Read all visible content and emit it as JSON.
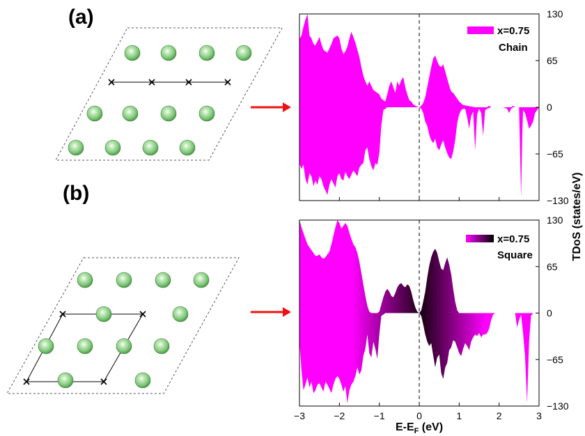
{
  "figure": {
    "panel_labels": [
      "(a)",
      "(b)"
    ],
    "colors": {
      "magenta": "#ff00ff",
      "dark": "#1a0014",
      "atom": "#7fc67a",
      "arrow": "#ee1111"
    }
  },
  "chart_data": [
    {
      "type": "area",
      "panel": "(a)",
      "legend": [
        "x=0.75",
        "Chain"
      ],
      "xlim": [
        -3,
        3
      ],
      "ylim": [
        -130,
        130
      ],
      "xticks": [
        -3,
        -2,
        -1,
        0,
        1,
        2,
        3
      ],
      "yticks": [
        -130,
        -65,
        0,
        65,
        130
      ],
      "fermi_line": 0,
      "fill": "solid",
      "spin_up": {
        "x": [
          -3.0,
          -2.95,
          -2.9,
          -2.85,
          -2.8,
          -2.75,
          -2.7,
          -2.65,
          -2.6,
          -2.55,
          -2.5,
          -2.45,
          -2.4,
          -2.35,
          -2.3,
          -2.25,
          -2.2,
          -2.15,
          -2.1,
          -2.05,
          -2.0,
          -1.95,
          -1.9,
          -1.85,
          -1.8,
          -1.75,
          -1.7,
          -1.65,
          -1.6,
          -1.55,
          -1.5,
          -1.45,
          -1.4,
          -1.35,
          -1.3,
          -1.25,
          -1.2,
          -1.15,
          -1.1,
          -1.05,
          -1.0,
          -0.95,
          -0.9,
          -0.85,
          -0.8,
          -0.75,
          -0.7,
          -0.65,
          -0.6,
          -0.55,
          -0.5,
          -0.45,
          -0.4,
          -0.35,
          -0.3,
          -0.25,
          -0.2,
          -0.15,
          -0.1,
          -0.05,
          0.0,
          0.05,
          0.1,
          0.15,
          0.2,
          0.25,
          0.3,
          0.35,
          0.4,
          0.45,
          0.5,
          0.55,
          0.6,
          0.65,
          0.7,
          0.75,
          0.8,
          0.85,
          0.9,
          0.95,
          1.0,
          1.1,
          1.2,
          1.3,
          1.4,
          1.5,
          1.6,
          1.7,
          1.75,
          1.8,
          1.9,
          2.0,
          2.1,
          2.2,
          2.3,
          2.35,
          2.4,
          2.45,
          2.5,
          2.55,
          2.6,
          2.65,
          2.7,
          2.8,
          2.9,
          3.0
        ],
        "y": [
          95,
          100,
          112,
          122,
          130,
          100,
          96,
          88,
          86,
          92,
          98,
          88,
          80,
          78,
          76,
          82,
          88,
          96,
          98,
          100,
          96,
          82,
          74,
          78,
          84,
          96,
          105,
          98,
          90,
          80,
          70,
          56,
          44,
          36,
          30,
          36,
          30,
          24,
          22,
          20,
          18,
          12,
          10,
          8,
          18,
          30,
          36,
          28,
          20,
          36,
          30,
          38,
          42,
          28,
          18,
          10,
          8,
          4,
          2,
          1,
          0,
          2,
          6,
          14,
          28,
          42,
          56,
          68,
          72,
          64,
          58,
          56,
          60,
          50,
          40,
          30,
          22,
          20,
          16,
          12,
          8,
          3,
          2,
          1,
          0,
          0,
          0,
          0,
          2,
          0,
          0,
          0,
          0,
          0,
          0,
          2,
          0,
          0,
          0,
          0,
          0,
          0,
          0,
          0,
          0,
          0
        ]
      },
      "spin_down": {
        "x": [
          -3.0,
          -2.95,
          -2.9,
          -2.85,
          -2.8,
          -2.75,
          -2.7,
          -2.65,
          -2.6,
          -2.55,
          -2.5,
          -2.45,
          -2.4,
          -2.35,
          -2.3,
          -2.25,
          -2.2,
          -2.15,
          -2.1,
          -2.05,
          -2.0,
          -1.95,
          -1.9,
          -1.85,
          -1.8,
          -1.75,
          -1.7,
          -1.65,
          -1.6,
          -1.55,
          -1.5,
          -1.45,
          -1.4,
          -1.35,
          -1.3,
          -1.25,
          -1.2,
          -1.15,
          -1.1,
          -1.05,
          -1.0,
          -0.95,
          -0.9,
          -0.85,
          -0.8,
          -0.75,
          -0.7,
          -0.65,
          -0.6,
          -0.55,
          -0.5,
          -0.45,
          -0.4,
          -0.35,
          -0.3,
          -0.25,
          -0.2,
          -0.15,
          -0.1,
          -0.05,
          0.0,
          0.05,
          0.1,
          0.15,
          0.2,
          0.25,
          0.3,
          0.35,
          0.4,
          0.45,
          0.5,
          0.55,
          0.6,
          0.65,
          0.7,
          0.75,
          0.8,
          0.85,
          0.9,
          0.95,
          1.0,
          1.05,
          1.1,
          1.15,
          1.2,
          1.25,
          1.3,
          1.35,
          1.4,
          1.45,
          1.5,
          1.55,
          1.6,
          1.65,
          1.7,
          1.75,
          1.8,
          1.85,
          1.9,
          2.0,
          2.1,
          2.2,
          2.25,
          2.3,
          2.35,
          2.4,
          2.45,
          2.5,
          2.52,
          2.55,
          2.58,
          2.6,
          2.65,
          2.7,
          2.75,
          2.8,
          2.85,
          2.9,
          3.0
        ],
        "y": [
          -78,
          -86,
          -80,
          -100,
          -108,
          -92,
          -96,
          -110,
          -102,
          -108,
          -96,
          -100,
          -110,
          -116,
          -122,
          -108,
          -100,
          -106,
          -112,
          -96,
          -92,
          -100,
          -102,
          -90,
          -96,
          -100,
          -94,
          -88,
          -92,
          -96,
          -84,
          -80,
          -78,
          -60,
          -56,
          -72,
          -82,
          -88,
          -78,
          -80,
          -64,
          -26,
          -4,
          -2,
          0,
          0,
          0,
          0,
          0,
          0,
          0,
          0,
          0,
          0,
          0,
          0,
          0,
          0,
          0,
          0,
          0,
          -2,
          -8,
          -20,
          -26,
          -38,
          -46,
          -50,
          -44,
          -56,
          -60,
          -52,
          -46,
          -56,
          -64,
          -70,
          -72,
          -62,
          -46,
          -22,
          -10,
          -4,
          -2,
          -2,
          -14,
          -30,
          -12,
          -6,
          -60,
          -10,
          -2,
          -8,
          -40,
          -4,
          -2,
          -1,
          0,
          0,
          0,
          0,
          0,
          -2,
          -8,
          -2,
          0,
          0,
          0,
          0,
          -50,
          -126,
          -40,
          -4,
          -8,
          -18,
          -30,
          -26,
          -20,
          -8,
          0
        ]
      }
    },
    {
      "type": "area",
      "panel": "(b)",
      "legend": [
        "x=0.75",
        "Square"
      ],
      "xlim": [
        -3,
        3
      ],
      "ylim": [
        -130,
        130
      ],
      "xticks": [
        -3,
        -2,
        -1,
        0,
        1,
        2,
        3
      ],
      "yticks": [
        -130,
        -65,
        0,
        65,
        130
      ],
      "xlabel_parts": [
        "E-E",
        "F",
        " (eV)"
      ],
      "ylabel": "TDoS (states/eV)",
      "fermi_line": 0,
      "fill": "gradient",
      "spin_up": {
        "x": [
          -3.0,
          -2.95,
          -2.9,
          -2.85,
          -2.8,
          -2.75,
          -2.7,
          -2.65,
          -2.6,
          -2.55,
          -2.5,
          -2.45,
          -2.4,
          -2.35,
          -2.3,
          -2.25,
          -2.2,
          -2.15,
          -2.1,
          -2.05,
          -2.0,
          -1.95,
          -1.9,
          -1.85,
          -1.8,
          -1.75,
          -1.7,
          -1.65,
          -1.6,
          -1.55,
          -1.5,
          -1.45,
          -1.4,
          -1.35,
          -1.3,
          -1.25,
          -1.2,
          -1.15,
          -1.1,
          -1.05,
          -1.0,
          -0.95,
          -0.9,
          -0.85,
          -0.8,
          -0.75,
          -0.7,
          -0.65,
          -0.6,
          -0.55,
          -0.5,
          -0.45,
          -0.4,
          -0.35,
          -0.3,
          -0.25,
          -0.2,
          -0.15,
          -0.1,
          -0.05,
          0.0,
          0.05,
          0.1,
          0.15,
          0.2,
          0.25,
          0.3,
          0.35,
          0.4,
          0.45,
          0.5,
          0.55,
          0.6,
          0.65,
          0.7,
          0.75,
          0.8,
          0.85,
          0.9,
          0.95,
          1.0,
          1.1,
          1.2,
          1.3,
          1.4,
          1.5,
          1.6,
          1.7,
          1.75,
          1.8,
          1.9,
          2.0,
          2.1,
          2.2,
          2.3,
          2.4,
          2.5,
          2.6,
          2.7,
          2.8,
          2.9,
          3.0
        ],
        "y": [
          130,
          120,
          112,
          104,
          96,
          92,
          88,
          84,
          80,
          80,
          82,
          78,
          76,
          78,
          82,
          86,
          96,
          108,
          120,
          130,
          126,
          118,
          122,
          126,
          122,
          112,
          104,
          96,
          92,
          84,
          72,
          56,
          40,
          24,
          10,
          2,
          0,
          0,
          0,
          0,
          2,
          12,
          22,
          30,
          34,
          30,
          24,
          22,
          28,
          36,
          40,
          42,
          38,
          36,
          40,
          38,
          30,
          18,
          8,
          2,
          0,
          4,
          16,
          30,
          50,
          66,
          78,
          86,
          90,
          84,
          72,
          62,
          60,
          70,
          78,
          68,
          54,
          34,
          16,
          4,
          0,
          0,
          0,
          0,
          0,
          0,
          0,
          0,
          0,
          0,
          0,
          0,
          0,
          0,
          0,
          0,
          0,
          0,
          0,
          0,
          0,
          0
        ]
      },
      "spin_down": {
        "x": [
          -3.0,
          -2.95,
          -2.9,
          -2.85,
          -2.8,
          -2.75,
          -2.7,
          -2.65,
          -2.6,
          -2.55,
          -2.5,
          -2.45,
          -2.4,
          -2.35,
          -2.3,
          -2.25,
          -2.2,
          -2.15,
          -2.1,
          -2.05,
          -2.0,
          -1.95,
          -1.9,
          -1.85,
          -1.8,
          -1.75,
          -1.7,
          -1.65,
          -1.6,
          -1.55,
          -1.5,
          -1.45,
          -1.4,
          -1.35,
          -1.3,
          -1.25,
          -1.2,
          -1.15,
          -1.1,
          -1.05,
          -1.0,
          -0.95,
          -0.9,
          -0.85,
          -0.8,
          -0.75,
          -0.7,
          -0.65,
          -0.6,
          -0.55,
          -0.5,
          -0.45,
          -0.4,
          -0.35,
          -0.3,
          -0.25,
          -0.2,
          -0.15,
          -0.1,
          -0.05,
          0.0,
          0.05,
          0.1,
          0.15,
          0.2,
          0.25,
          0.3,
          0.35,
          0.4,
          0.45,
          0.5,
          0.55,
          0.6,
          0.65,
          0.7,
          0.75,
          0.8,
          0.85,
          0.9,
          0.95,
          1.0,
          1.05,
          1.1,
          1.15,
          1.2,
          1.25,
          1.3,
          1.35,
          1.4,
          1.45,
          1.5,
          1.55,
          1.6,
          1.65,
          1.7,
          1.75,
          1.8,
          1.85,
          1.9,
          2.0,
          2.1,
          2.2,
          2.3,
          2.4,
          2.45,
          2.5,
          2.55,
          2.6,
          2.65,
          2.7,
          2.75,
          2.8,
          2.85,
          2.9,
          3.0
        ],
        "y": [
          -40,
          -80,
          -108,
          -100,
          -90,
          -104,
          -96,
          -112,
          -108,
          -100,
          -98,
          -104,
          -110,
          -96,
          -100,
          -106,
          -112,
          -100,
          -92,
          -88,
          -92,
          -100,
          -110,
          -102,
          -126,
          -108,
          -100,
          -96,
          -88,
          -76,
          -86,
          -80,
          -60,
          -50,
          -30,
          -56,
          -62,
          -40,
          -50,
          -64,
          -30,
          -4,
          -2,
          0,
          0,
          0,
          0,
          0,
          0,
          0,
          0,
          0,
          0,
          0,
          0,
          0,
          0,
          0,
          0,
          0,
          0,
          -4,
          -16,
          -30,
          -40,
          -46,
          -42,
          -60,
          -76,
          -62,
          -58,
          -84,
          -92,
          -76,
          -70,
          -52,
          -48,
          -38,
          -40,
          -48,
          -56,
          -60,
          -50,
          -42,
          -46,
          -52,
          -40,
          -34,
          -30,
          -32,
          -28,
          -34,
          -30,
          -30,
          -28,
          -22,
          -10,
          -2,
          0,
          0,
          0,
          0,
          0,
          0,
          -20,
          -10,
          -2,
          -28,
          -60,
          -126,
          -40,
          -4,
          0,
          0,
          0
        ]
      }
    }
  ]
}
